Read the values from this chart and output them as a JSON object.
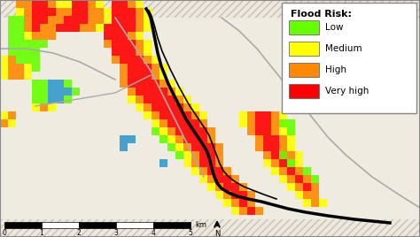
{
  "legend_title": "Flood Risk:",
  "legend_entries": [
    "Low",
    "Medium",
    "High",
    "Very high"
  ],
  "legend_colors": [
    "#66ff00",
    "#ffff00",
    "#ff8800",
    "#ff0000"
  ],
  "bg_color": "#ede8df",
  "hatch_color": "#c8bfb0",
  "scale_label": "km",
  "figsize": [
    4.74,
    2.68
  ],
  "dpi": 100,
  "cell": 9
}
